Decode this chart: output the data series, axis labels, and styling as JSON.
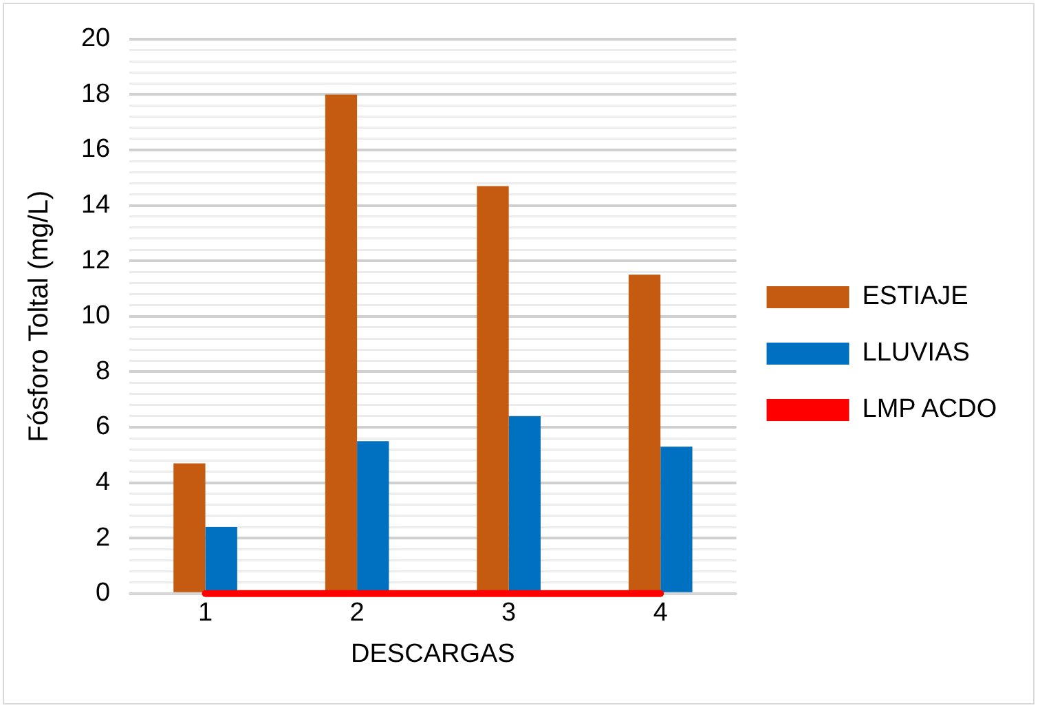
{
  "chart_data": {
    "type": "bar",
    "xlabel": "DESCARGAS",
    "ylabel": "Fósforo Toltal (mg/L)",
    "categories": [
      "1",
      "2",
      "3",
      "4"
    ],
    "series": [
      {
        "name": "ESTIAJE",
        "color": "#c55a11",
        "values": [
          4.7,
          18.0,
          14.7,
          11.5
        ]
      },
      {
        "name": "LLUVIAS",
        "color": "#0070c0",
        "values": [
          2.4,
          5.5,
          6.4,
          5.3
        ]
      },
      {
        "name": "LMP ACDO",
        "type": "line",
        "color": "#ff0000",
        "values": [
          0,
          0,
          0,
          0
        ]
      }
    ],
    "ylim": [
      0,
      20
    ],
    "yticks": [
      0,
      {
        "value": 0.4,
        "label": null
      },
      {
        "value": 0.8,
        "label": null
      },
      {
        "value": 1.2,
        "label": null
      },
      {
        "value": 1.6,
        "label": null
      },
      2,
      {
        "value": 2.4,
        "label": null
      },
      {
        "value": 2.8,
        "label": null
      },
      {
        "value": 3.2,
        "label": null
      },
      {
        "value": 3.6,
        "label": null
      },
      4,
      {
        "value": 4.4,
        "label": null
      },
      {
        "value": 4.8,
        "label": null
      },
      {
        "value": 5.2,
        "label": null
      },
      {
        "value": 5.6,
        "label": null
      },
      6,
      {
        "value": 6.4,
        "label": null
      },
      {
        "value": 6.8,
        "label": null
      },
      {
        "value": 7.2,
        "label": null
      },
      {
        "value": 7.6,
        "label": null
      },
      8,
      {
        "value": 8.4,
        "label": null
      },
      {
        "value": 8.8,
        "label": null
      },
      {
        "value": 9.2,
        "label": null
      },
      {
        "value": 9.6,
        "label": null
      },
      10,
      {
        "value": 10.4,
        "label": null
      },
      {
        "value": 10.8,
        "label": null
      },
      {
        "value": 11.2,
        "label": null
      },
      {
        "value": 11.6,
        "label": null
      },
      12,
      {
        "value": 12.4,
        "label": null
      },
      {
        "value": 12.8,
        "label": null
      },
      {
        "value": 13.2,
        "label": null
      },
      {
        "value": 13.6,
        "label": null
      },
      14,
      {
        "value": 14.4,
        "label": null
      },
      {
        "value": 14.8,
        "label": null
      },
      {
        "value": 15.2,
        "label": null
      },
      {
        "value": 15.6,
        "label": null
      },
      16,
      {
        "value": 16.4,
        "label": null
      },
      {
        "value": 16.8,
        "label": null
      },
      {
        "value": 17.2,
        "label": null
      },
      {
        "value": 17.6,
        "label": null
      },
      18,
      {
        "value": 18.4,
        "label": null
      },
      {
        "value": 18.8,
        "label": null
      },
      {
        "value": 19.2,
        "label": null
      },
      {
        "value": 19.6,
        "label": null
      },
      20
    ],
    "grid": "y",
    "legend": "right",
    "marker": "none",
    "line_style": "solid"
  }
}
